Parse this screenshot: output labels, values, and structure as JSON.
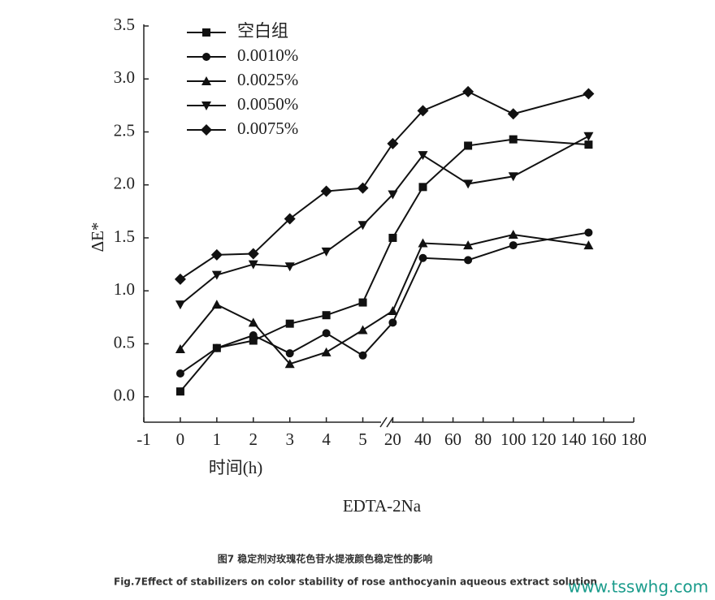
{
  "chart_data": {
    "type": "line",
    "subtitle": "EDTA-2Na",
    "x_label": "时间(h)",
    "y_label": "ΔE*",
    "x": [
      0,
      1,
      2,
      3,
      4,
      5,
      20,
      40,
      70,
      100,
      150
    ],
    "x_segments": [
      {
        "xlim": [
          -1,
          5.5
        ],
        "xticks": [
          -1,
          0,
          1,
          2,
          3,
          4,
          5
        ]
      },
      {
        "xlim": [
          16,
          180
        ],
        "xticks": [
          20,
          40,
          60,
          80,
          100,
          120,
          140,
          160,
          180
        ]
      }
    ],
    "ylim": [
      -0.24,
      3.5
    ],
    "yticks": [
      {
        "value": 0,
        "label": "0.0"
      },
      {
        "value": 0.5,
        "label": "0.5"
      },
      {
        "value": 1,
        "label": "1.0"
      },
      {
        "value": 1.5,
        "label": "1.5"
      },
      {
        "value": 2,
        "label": "2.0"
      },
      {
        "value": 2.5,
        "label": "2.5"
      },
      {
        "value": 3,
        "label": "3.0"
      },
      {
        "value": 3.5,
        "label": "3.5"
      }
    ],
    "series": [
      {
        "name": "空白组",
        "color": "#111111",
        "marker": "square",
        "values": [
          0.05,
          0.46,
          0.53,
          0.69,
          0.77,
          0.89,
          1.5,
          1.98,
          2.37,
          2.43,
          2.38
        ]
      },
      {
        "name": "0.0010%",
        "color": "#111111",
        "marker": "circle",
        "values": [
          0.22,
          0.46,
          0.58,
          0.41,
          0.6,
          0.39,
          0.7,
          1.31,
          1.29,
          1.43,
          1.55
        ]
      },
      {
        "name": "0.0025%",
        "color": "#111111",
        "marker": "triangle-up",
        "values": [
          0.45,
          0.87,
          0.7,
          0.31,
          0.42,
          0.63,
          0.81,
          1.45,
          1.43,
          1.53,
          1.43
        ]
      },
      {
        "name": "0.0050%",
        "color": "#111111",
        "marker": "triangle-down",
        "values": [
          0.87,
          1.15,
          1.25,
          1.23,
          1.37,
          1.62,
          1.91,
          2.28,
          2.01,
          2.08,
          2.46
        ]
      },
      {
        "name": "0.0075%",
        "color": "#111111",
        "marker": "diamond",
        "values": [
          1.11,
          1.34,
          1.35,
          1.68,
          1.94,
          1.97,
          2.39,
          2.7,
          2.88,
          2.67,
          2.86
        ]
      }
    ]
  },
  "caption": {
    "cn": "图7 稳定剂对玫瑰花色苷水提液颜色稳定性的影响",
    "en": "Fig.7Effect of stabilizers on color stability of rose anthocyanin aqueous extract solution"
  },
  "watermark": "www.tsswhg.com"
}
